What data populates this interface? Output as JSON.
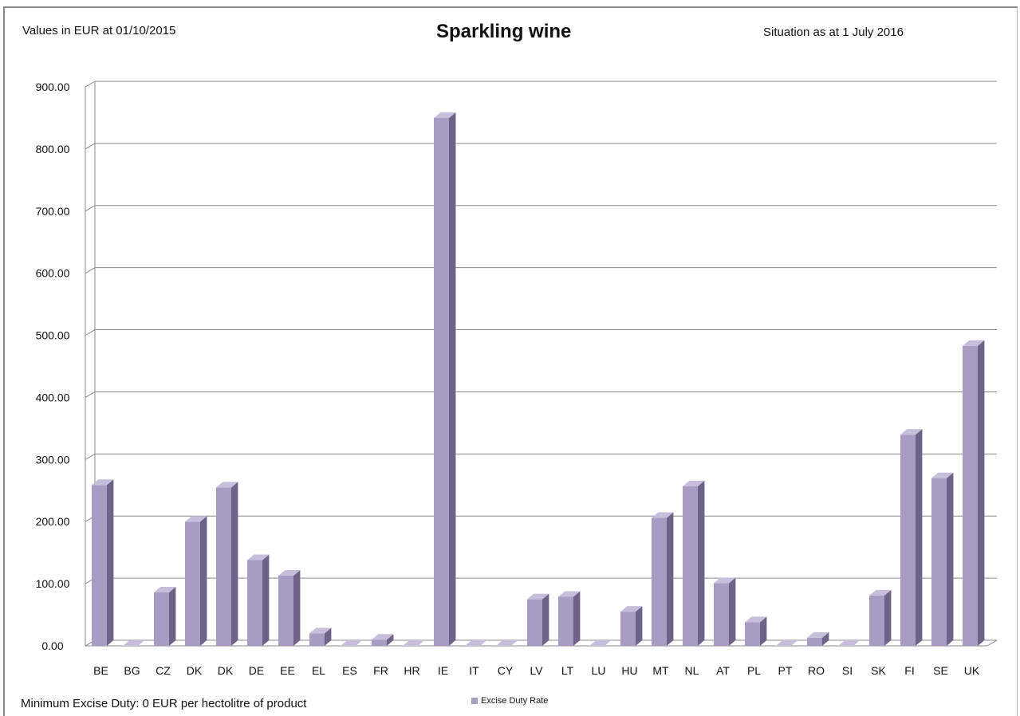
{
  "header": {
    "left_note": "Values in EUR at 01/10/2015",
    "title": "Sparkling wine",
    "right_note": "Situation as at 1 July 2016"
  },
  "footer": {
    "note": "Minimum Excise Duty: 0 EUR per hectolitre of product"
  },
  "colors": {
    "bar_front": "#a89cc4",
    "bar_side": "#6e6288",
    "bar_top": "#c7bedc",
    "grid": "#8a8a8a"
  },
  "chart_data": {
    "type": "bar",
    "title": "Sparkling wine",
    "xlabel": "",
    "ylabel": "",
    "ylim": [
      0,
      900
    ],
    "yticks": [
      "0.00",
      "100.00",
      "200.00",
      "300.00",
      "400.00",
      "500.00",
      "600.00",
      "700.00",
      "800.00",
      "900.00"
    ],
    "grid": true,
    "legend": "bottom",
    "categories": [
      "BE",
      "BG",
      "CZ",
      "DK",
      "DK",
      "DE",
      "EE",
      "EL",
      "ES",
      "FR",
      "HR",
      "IE",
      "IT",
      "CY",
      "LV",
      "LT",
      "LU",
      "HU",
      "MT",
      "NL",
      "AT",
      "PL",
      "PT",
      "RO",
      "SI",
      "SK",
      "FI",
      "SE",
      "UK"
    ],
    "series": [
      {
        "name": "Excise Duty Rate",
        "values": [
          259,
          0,
          86,
          200,
          255,
          138,
          113,
          20,
          0,
          10,
          0,
          850,
          0,
          0,
          75,
          79,
          0,
          55,
          206,
          257,
          101,
          38,
          0,
          13,
          0,
          81,
          340,
          270,
          483
        ]
      }
    ]
  }
}
